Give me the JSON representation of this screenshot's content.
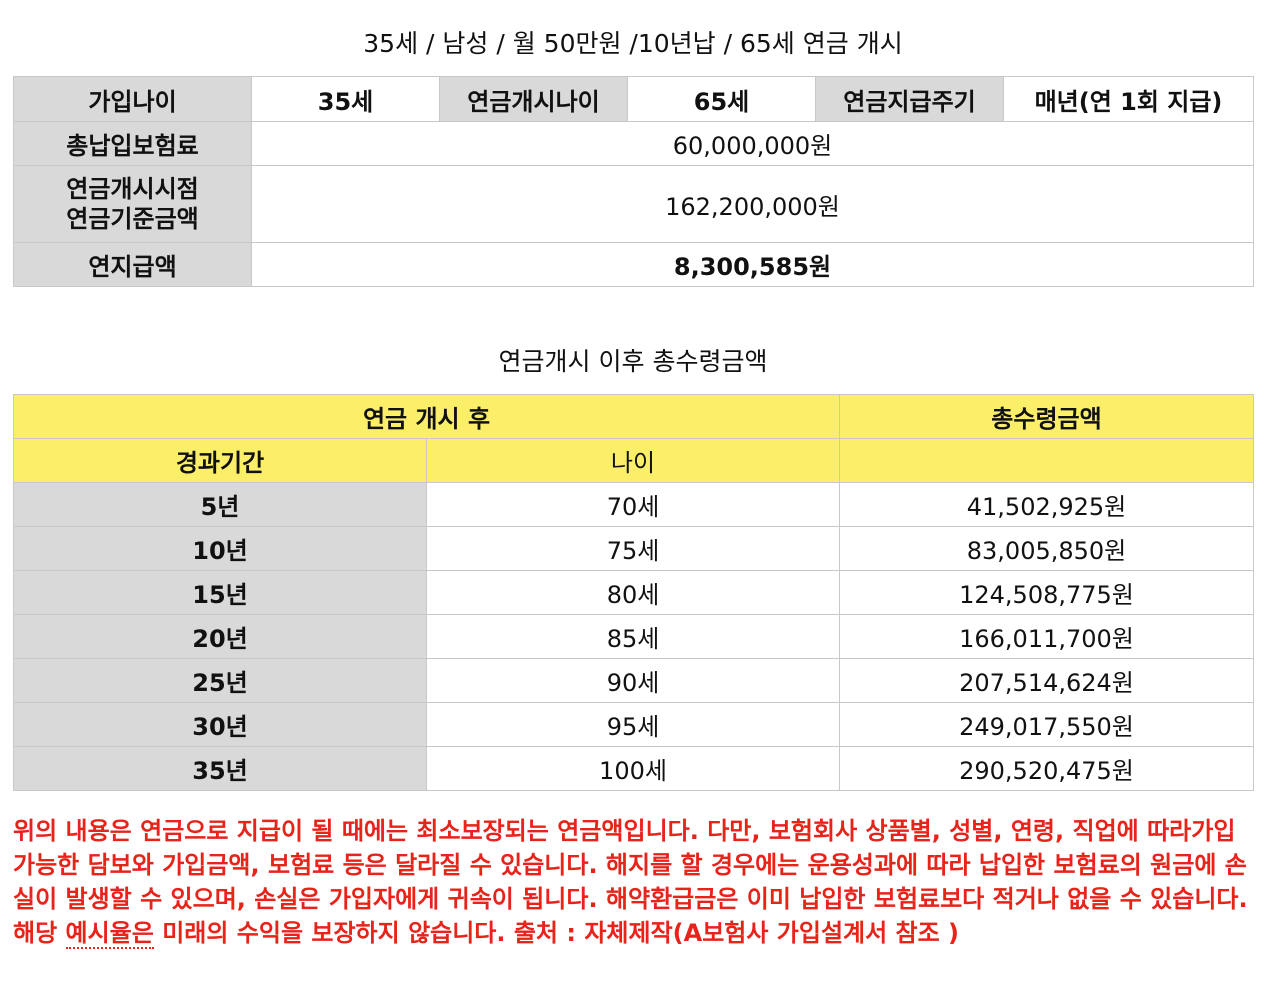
{
  "title": "35세 / 남성 / 월 50만원 /10년납 / 65세 연금 개시",
  "summary": {
    "join_age_label": "가입나이",
    "join_age": "35세",
    "start_age_label": "연금개시나이",
    "start_age": "65세",
    "cycle_label": "연금지급주기",
    "cycle": "매년(연 1회 지급)",
    "total_premium_label": "총납입보험료",
    "total_premium": "60,000,000원",
    "base_amount_label_line1": "연금개시시점",
    "base_amount_label_line2": "연금기준금액",
    "base_amount": "162,200,000원",
    "annual_payment_label": "연지급액",
    "annual_payment": "8,300,585원"
  },
  "payout": {
    "title": "연금개시 이후 총수령금액",
    "group_header": "연금 개시 후",
    "total_header": "총수령금액",
    "period_header": "경과기간",
    "age_header": "나이",
    "rows": [
      {
        "period": "5년",
        "age": "70세",
        "amount": "41,502,925원"
      },
      {
        "period": "10년",
        "age": "75세",
        "amount": "83,005,850원"
      },
      {
        "period": "15년",
        "age": "80세",
        "amount": "124,508,775원"
      },
      {
        "period": "20년",
        "age": "85세",
        "amount": "166,011,700원"
      },
      {
        "period": "25년",
        "age": "90세",
        "amount": "207,514,624원"
      },
      {
        "period": "30년",
        "age": "95세",
        "amount": "249,017,550원"
      },
      {
        "period": "35년",
        "age": "100세",
        "amount": "290,520,475원"
      }
    ]
  },
  "notice": {
    "before": "위의 내용은 연금으로 지급이 될 때에는 최소보장되는 연금액입니다. 다만, 보험회사 상품별, 성별, 연령, 직업에 따라가입 가능한 담보와 가입금액, 보험료 등은 달라질 수 있습니다. 해지를 할 경우에는 운용성과에 따라 납입한 보험료의 원금에 손실이 발생할 수 있으며, 손실은 가입자에게 귀속이 됩니다. 해약환급금은 이미 납입한 보험료보다 적거나 없을 수 있습니다. 해당 ",
    "underlined": "예시율은",
    "after": " 미래의 수익을 보장하지 않습니다. 출처 : 자체제작(A보험사 가입설계서 참조 )"
  },
  "colors": {
    "header_gray": "#d9d9d9",
    "header_yellow": "#fbef6a",
    "notice_red": "#e8231a"
  }
}
